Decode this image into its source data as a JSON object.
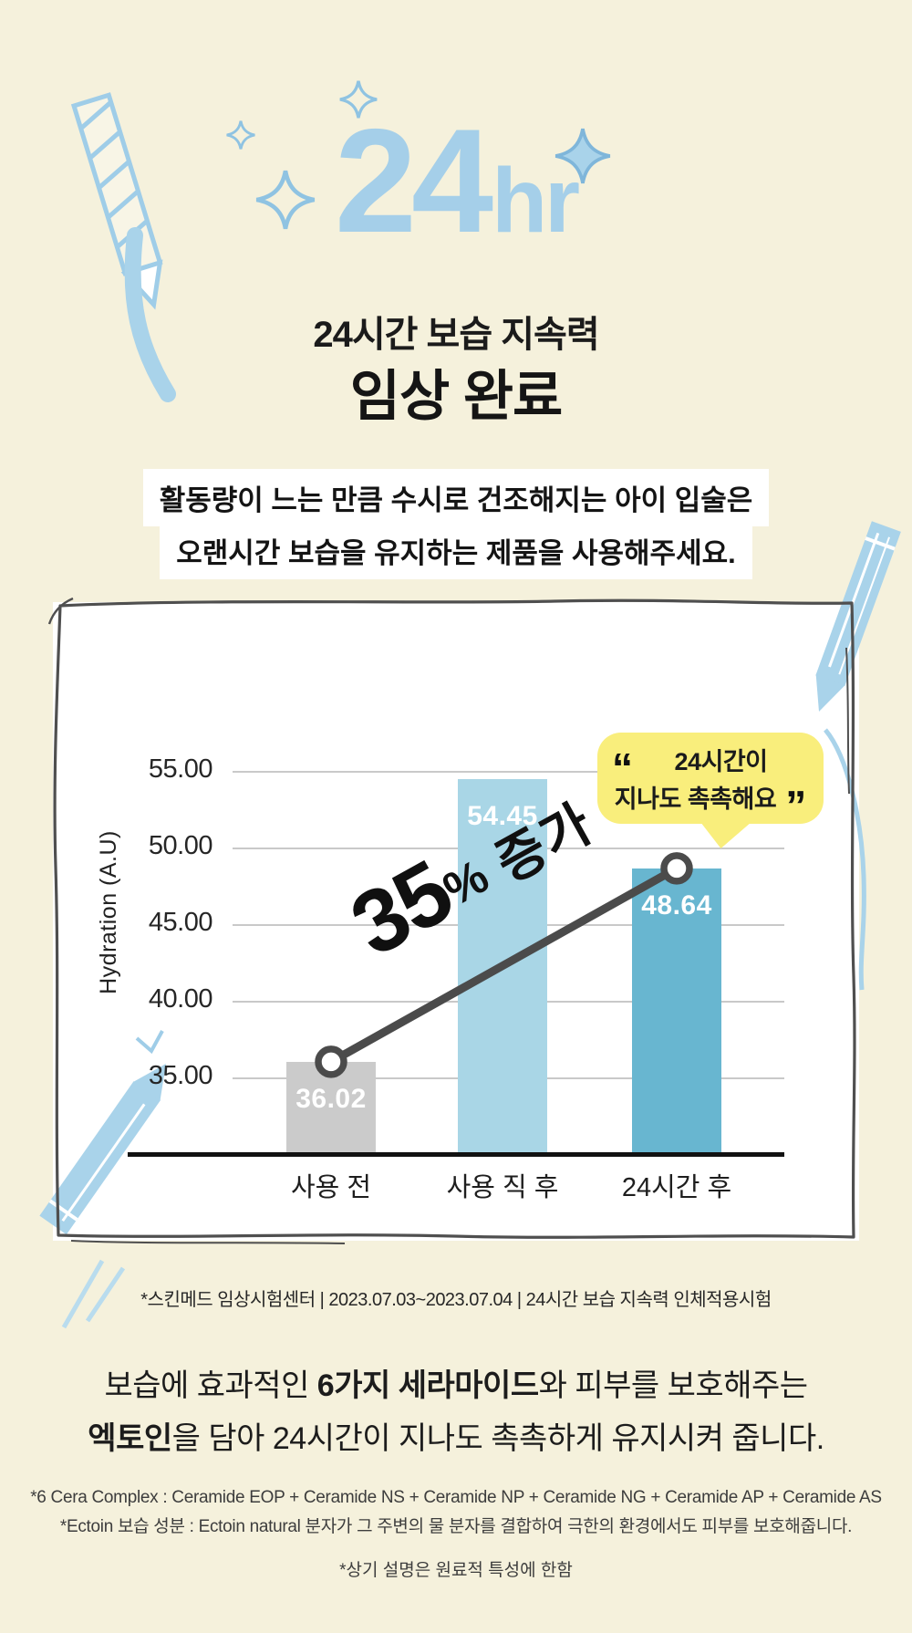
{
  "hero": {
    "number": "24",
    "unit": "hr"
  },
  "heading": {
    "subtitle": "24시간 보습 지속력",
    "title": "임상 완료"
  },
  "callout": {
    "line1": "활동량이 느는 만큼 수시로 건조해지는 아이 입술은",
    "line2": "오랜시간 보습을 유지하는 제품을 사용해주세요."
  },
  "chart_data": {
    "type": "bar",
    "title": "",
    "ylabel": "Hydration (A.U)",
    "categories": [
      "사용 전",
      "사용 직 후",
      "24시간 후"
    ],
    "values": [
      36.02,
      54.45,
      48.64
    ],
    "bar_labels": [
      "36.02",
      "54.45",
      "48.64"
    ],
    "bar_colors": [
      "#cbcbcb",
      "#a9d6e6",
      "#68b6d0"
    ],
    "yticks": [
      55,
      50,
      45,
      40,
      35
    ],
    "ytick_labels": [
      "55.00",
      "50.00",
      "45.00",
      "40.00",
      "35.00"
    ],
    "ylim": [
      30,
      57.5
    ],
    "grid": true,
    "legend_position": "none",
    "annotation": {
      "big": "35",
      "pct": "%",
      "rest": " 증가"
    },
    "connector": {
      "from_index": 0,
      "to_index": 2
    },
    "bubble": {
      "open": "“",
      "line1": "24시간이",
      "line2": "지나도 촉촉해요",
      "close": "”"
    }
  },
  "source_note": "*스킨메드 임상시험센터 | 2023.07.03~2023.07.04 | 24시간 보습 지속력 인체적용시험",
  "description": {
    "l1_pre": "보습에 효과적인 ",
    "l1_bold": "6가지 세라마이드",
    "l1_post": "와 피부를 보호해주는",
    "l2_bold": "엑토인",
    "l2_post": "을 담아 24시간이 지나도 촉촉하게 유지시켜 줍니다."
  },
  "footnotes": {
    "line1": "*6 Cera Complex : Ceramide EOP + Ceramide NS + Ceramide NP + Ceramide NG + Ceramide AP + Ceramide AS",
    "line2": "*Ectoin 보습 성분 : Ectoin natural 분자가 그 주변의 물 분자를 결합하여 극한의 환경에서도 피부를 보호해줍니다.",
    "line3": "*상기 설명은 원료적 특성에 한함"
  },
  "colors": {
    "background": "#f5f1dc",
    "accent_blue": "#a5cfe9",
    "decor_blue": "#9fcde8",
    "bubble_yellow": "#f9ee7c",
    "connector_dark": "#4b4b4b",
    "bar_before": "#cbcbcb",
    "bar_after": "#a9d6e6",
    "bar_24h": "#68b6d0"
  }
}
